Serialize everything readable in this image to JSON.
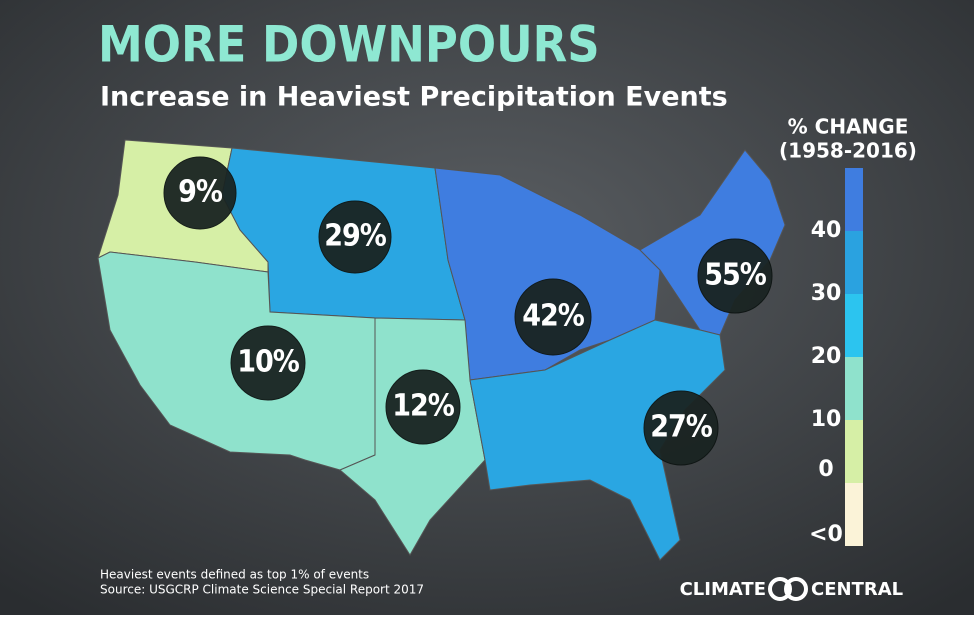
{
  "header": {
    "title": "MORE DOWNPOURS",
    "subtitle": "Increase in Heaviest Precipitation Events"
  },
  "regions": [
    {
      "label": "9%",
      "color": "#d6efa6"
    },
    {
      "label": "29%",
      "color": "#2aa6e2"
    },
    {
      "label": "42%",
      "color": "#3f7de0"
    },
    {
      "label": "55%",
      "color": "#3f7de0"
    },
    {
      "label": "10%",
      "color": "#8fe2cc"
    },
    {
      "label": "12%",
      "color": "#8fe2cc"
    },
    {
      "label": "27%",
      "color": "#2aa6e2"
    }
  ],
  "legend": {
    "title": "% CHANGE",
    "subtitle": "(1958-2016)",
    "colors": [
      "#3f7de0",
      "#2aa2e0",
      "#2cc4ef",
      "#8fe2cc",
      "#d6efa6",
      "#fbf3d8"
    ],
    "labels": [
      "40",
      "30",
      "20",
      "10",
      "0",
      "<0"
    ]
  },
  "footer": {
    "note": "Heaviest events defined as top 1% of events",
    "source": "Source: USGCRP Climate Science Special Report 2017",
    "logo_left": "CLIMATE",
    "logo_right": "CENTRAL"
  }
}
